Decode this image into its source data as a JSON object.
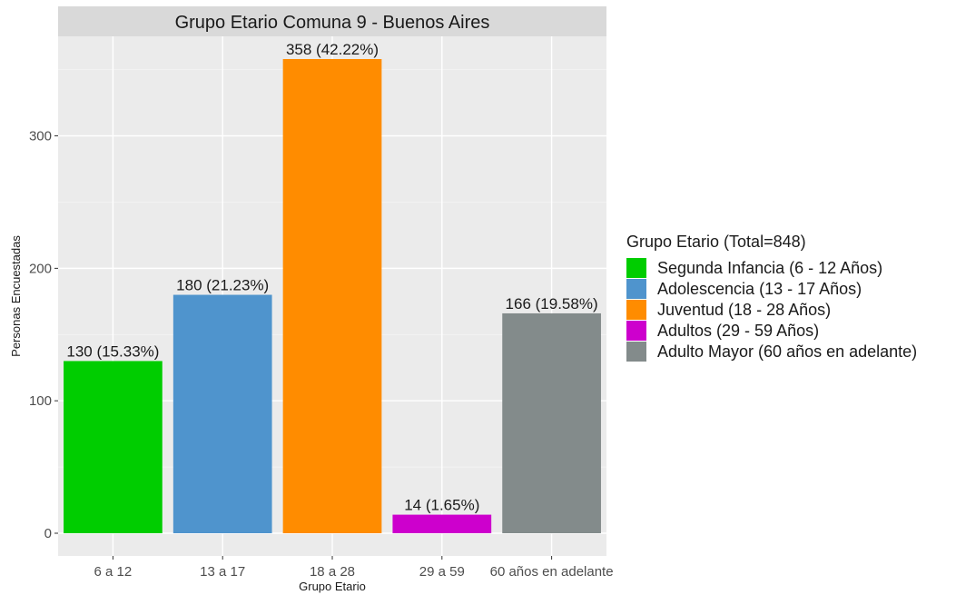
{
  "chart_data": {
    "type": "bar",
    "title": "Grupo Etario Comuna 9 - Buenos Aires",
    "xlabel": "Grupo Etario",
    "ylabel": "Personas Encuestadas",
    "categories": [
      "6 a 12",
      "13 a 17",
      "18 a 28",
      "29 a 59",
      "60 años en adelante"
    ],
    "values": [
      130,
      180,
      358,
      14,
      166
    ],
    "data_labels": [
      "130 (15.33%)",
      "180 (21.23%)",
      "358 (42.22%)",
      "14 (1.65%)",
      "166 (19.58%)"
    ],
    "colors": [
      "#00cd00",
      "#4f94cd",
      "#ff8c00",
      "#cd00cd",
      "#838b8b"
    ],
    "ylim": [
      0,
      372
    ],
    "yticks": [
      0,
      100,
      200,
      300
    ],
    "grid": true,
    "legend": {
      "title": "Grupo Etario (Total=848)",
      "placement": "right",
      "entries": [
        "Segunda Infancia (6 - 12 Años)",
        "Adolescencia (13 - 17 Años)",
        "Juventud (18 - 28 Años)",
        "Adultos (29 - 59 Años)",
        "Adulto Mayor (60 años en adelante)"
      ]
    }
  }
}
